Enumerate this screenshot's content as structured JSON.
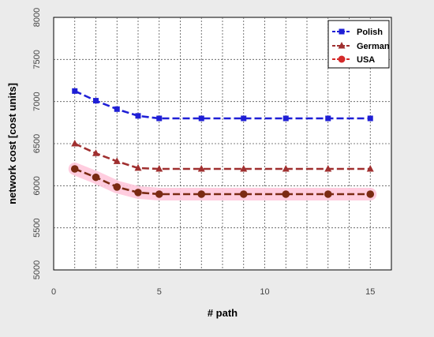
{
  "chart_data": {
    "type": "line",
    "title": "",
    "xlabel": "# path",
    "ylabel": "network cost [cost units]",
    "xlim": [
      0,
      16
    ],
    "ylim": [
      5000,
      8000
    ],
    "x_ticks": [
      0,
      5,
      10,
      15
    ],
    "y_ticks": [
      5000,
      5500,
      6000,
      6500,
      7000,
      7500,
      8000
    ],
    "grid": true,
    "legend_position": "top-right",
    "series": [
      {
        "name": "Polish",
        "color": "#1f1fd6",
        "marker": "square",
        "x": [
          1,
          2,
          3,
          4,
          5,
          7,
          9,
          11,
          13,
          15
        ],
        "y": [
          7125,
          7010,
          6910,
          6830,
          6800,
          6800,
          6800,
          6800,
          6800,
          6800
        ]
      },
      {
        "name": "German",
        "color": "#a03030",
        "marker": "triangle",
        "x": [
          1,
          2,
          3,
          4,
          5,
          7,
          9,
          11,
          13,
          15
        ],
        "y": [
          6500,
          6385,
          6290,
          6210,
          6200,
          6200,
          6200,
          6200,
          6200,
          6200
        ]
      },
      {
        "name": "USA",
        "color": "#d42a2a",
        "line_color": "#7a2a12",
        "marker": "circle",
        "x": [
          1,
          2,
          3,
          4,
          5,
          7,
          9,
          11,
          13,
          15
        ],
        "y": [
          6200,
          6100,
          5985,
          5920,
          5900,
          5900,
          5900,
          5900,
          5900,
          5900
        ]
      }
    ]
  }
}
